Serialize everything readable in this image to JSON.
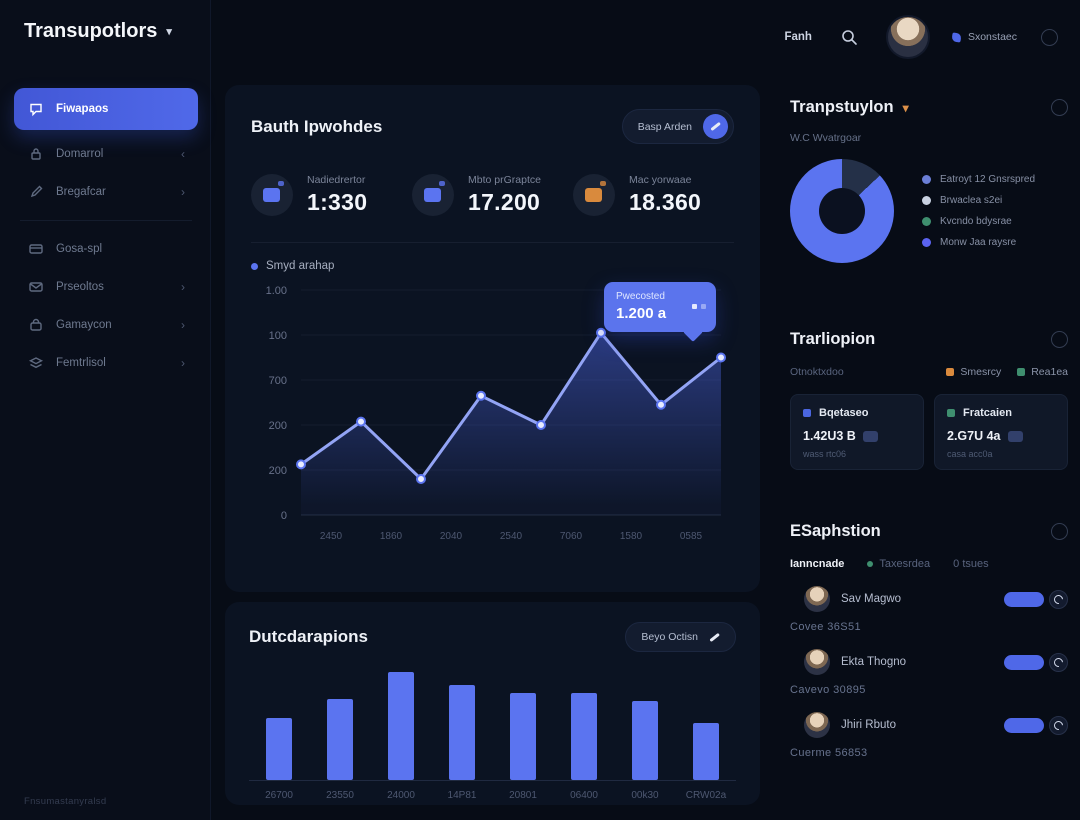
{
  "app": {
    "logo": "Transupotlors",
    "footer": "Fnsumastanyralsd"
  },
  "header": {
    "nav_label": "Fanh",
    "user_name": "Sxonstaec"
  },
  "sidebar": {
    "items": [
      {
        "label": "Fiwapaos",
        "icon": "chat-icon",
        "active": true,
        "chevron": ""
      },
      {
        "label": "Domarrol",
        "icon": "lock-icon",
        "active": false,
        "chevron": "‹"
      },
      {
        "label": "Bregafcar",
        "icon": "pen-icon",
        "active": false,
        "chevron": "›"
      },
      {
        "label": "Gosa-spl",
        "icon": "card-icon",
        "active": false,
        "chevron": "",
        "divider_before": true
      },
      {
        "label": "Prseoltos",
        "icon": "message-icon",
        "active": false,
        "chevron": "›"
      },
      {
        "label": "Gamaycon",
        "icon": "bag-icon",
        "active": false,
        "chevron": "›"
      },
      {
        "label": "Femtrlisol",
        "icon": "layers-icon",
        "active": false,
        "chevron": "›"
      }
    ]
  },
  "overview": {
    "title": "Bauth Ipwohdes",
    "action": "Basp Arden",
    "stats": [
      {
        "label": "Nadiedrertor",
        "value": "1:330",
        "accent": "#5b74f0"
      },
      {
        "label": "Mbto prGraptce",
        "value": "17.200",
        "accent": "#5b74f0"
      },
      {
        "label": "Mac yorwaae",
        "value": "18.360",
        "accent": "#d98a3d"
      }
    ]
  },
  "bars_section": {
    "action": "Beyo Octisn"
  },
  "right": {
    "distribution": {
      "subtitle": "W.C Wvatrgoar"
    },
    "transactions": {
      "title": "Trarliopion",
      "filter_label": "Otnoktxdoo",
      "legend": [
        {
          "label": "Smesrcy",
          "color": "#d98a3d"
        },
        {
          "label": "Rea1ea",
          "color": "#3f8f6f"
        }
      ],
      "cards": [
        {
          "title": "Bqetaseo",
          "value": "1.42U3 B",
          "sub": "wass rtc06",
          "accent": "#4b66e0"
        },
        {
          "title": "Fratcaien",
          "value": "2.G7U 4a",
          "sub": "casa acc0a",
          "accent": "#3f8f6f"
        }
      ]
    },
    "members": {
      "title": "ESaphstion",
      "tabs": [
        {
          "label": "Ianncnade",
          "active": true
        },
        {
          "label": "Taxesrdea",
          "active": false,
          "dot": "#3f8f6f"
        },
        {
          "label": "0 tsues",
          "active": false
        }
      ],
      "rows": [
        {
          "name": "Sav Magwo",
          "code": "Covee 36S51",
          "toggle_on": true
        },
        {
          "name": "Ekta Thogno",
          "code": "Cavevo 30895",
          "toggle_on": true
        },
        {
          "name": "Jhiri Rbuto",
          "code": "Cuerme 56853",
          "toggle_on": true
        }
      ]
    }
  },
  "chart_data": [
    {
      "type": "area",
      "legend_label": "Smyd arahap",
      "y_ticks_top_to_bottom": [
        "1.00",
        "100",
        "700",
        "200",
        "200",
        "0"
      ],
      "x_ticks": [
        "2450",
        "1860",
        "2040",
        "2540",
        "7060",
        "1580",
        "0585"
      ],
      "values": [
        225,
        415,
        160,
        530,
        400,
        810,
        490,
        700
      ],
      "ylim": [
        0,
        1000
      ],
      "grid": true,
      "line_color": "#93a4f5",
      "fill_color": "#4b64e0",
      "tooltip": {
        "label": "Pwecosted",
        "value": "1.200 a",
        "point_index": 7
      }
    },
    {
      "type": "bar",
      "title": "Dutcdarapions",
      "categories": [
        "26700",
        "23550",
        "24000",
        "14P81",
        "20801",
        "06400",
        "00k30",
        "CRW02a"
      ],
      "values": [
        57,
        75,
        100,
        88,
        81,
        81,
        73,
        53
      ],
      "ylim": [
        0,
        100
      ],
      "bar_color": "#5b74f0"
    },
    {
      "type": "pie",
      "title": "Tranpstuylon",
      "slices": [
        {
          "label": "segment-dark",
          "value": 13,
          "color": "#243048"
        },
        {
          "label": "segment-blue",
          "value": 87,
          "color": "#5b74f0"
        }
      ],
      "legend": [
        {
          "label": "Eatroyt 12 Gnsrspred",
          "color": "#6b7fd7"
        },
        {
          "label": "Brwaclea s2ei",
          "color": "#c9d2e2"
        },
        {
          "label": "Kvcndo bdysrae",
          "color": "#3f8f6f"
        },
        {
          "label": "Monw Jaa raysre",
          "color": "#5b63f0"
        }
      ]
    }
  ]
}
